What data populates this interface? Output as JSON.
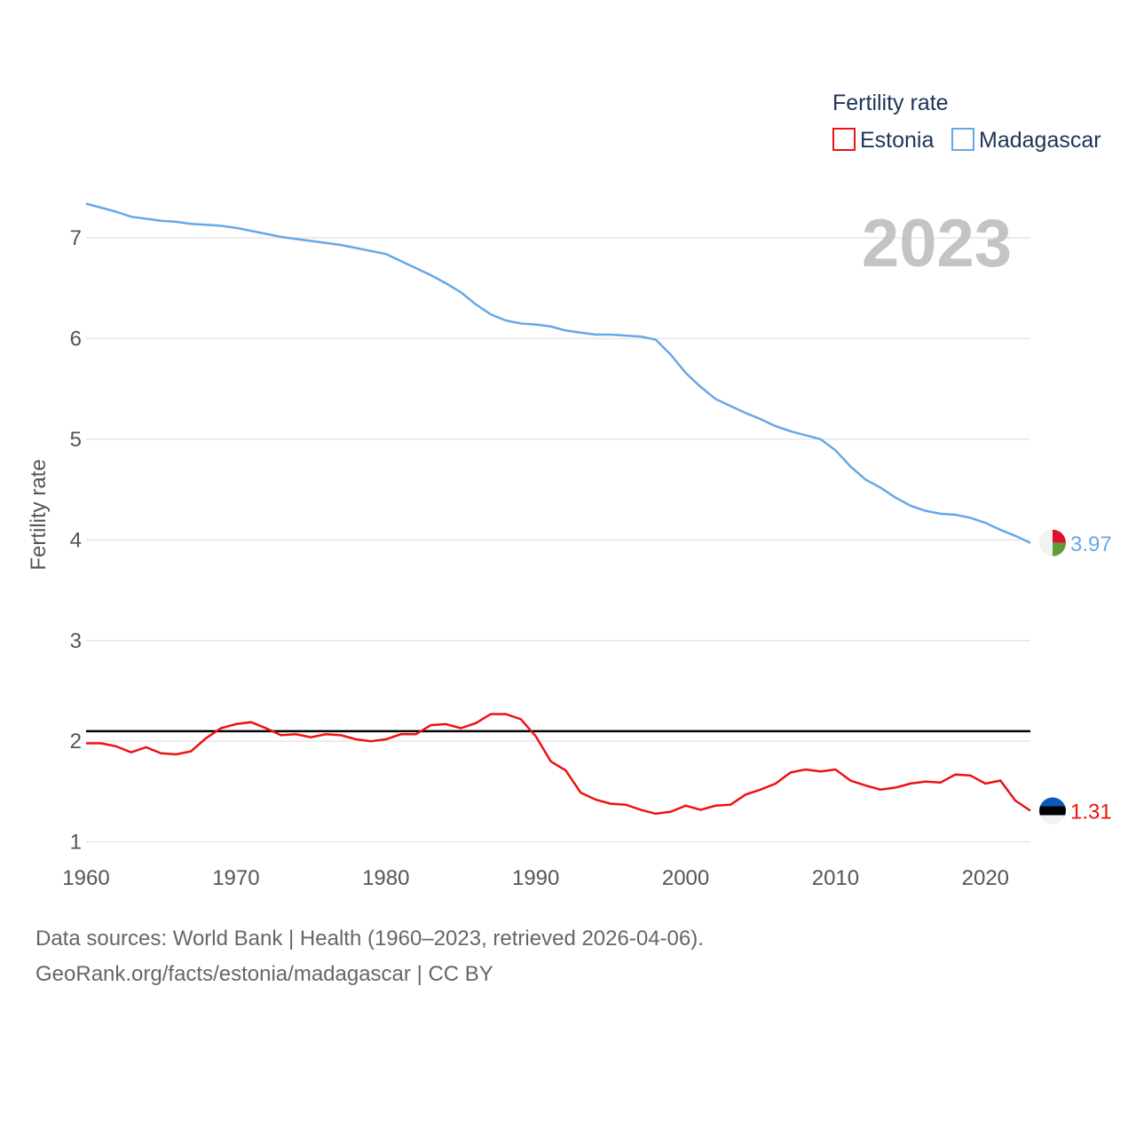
{
  "chart_data": {
    "type": "line",
    "legend_title": "Fertility rate",
    "ylabel": "Fertility rate",
    "year_label": "2023",
    "xlim": [
      1960,
      2023
    ],
    "ylim": [
      0.9,
      7.6
    ],
    "x_ticks": [
      "1960",
      "1970",
      "1980",
      "1990",
      "2000",
      "2010",
      "2020"
    ],
    "y_ticks": [
      "1",
      "2",
      "3",
      "4",
      "5",
      "6",
      "7"
    ],
    "reference_line": 2.1,
    "x": [
      1960,
      1961,
      1962,
      1963,
      1964,
      1965,
      1966,
      1967,
      1968,
      1969,
      1970,
      1971,
      1972,
      1973,
      1974,
      1975,
      1976,
      1977,
      1978,
      1979,
      1980,
      1981,
      1982,
      1983,
      1984,
      1985,
      1986,
      1987,
      1988,
      1989,
      1990,
      1991,
      1992,
      1993,
      1994,
      1995,
      1996,
      1997,
      1998,
      1999,
      2000,
      2001,
      2002,
      2003,
      2004,
      2005,
      2006,
      2007,
      2008,
      2009,
      2010,
      2011,
      2012,
      2013,
      2014,
      2015,
      2016,
      2017,
      2018,
      2019,
      2020,
      2021,
      2022,
      2023
    ],
    "series": [
      {
        "name": "Estonia",
        "color": "#ee1111",
        "end_label": "1.31",
        "values": [
          1.98,
          1.98,
          1.95,
          1.89,
          1.94,
          1.88,
          1.87,
          1.9,
          2.03,
          2.13,
          2.17,
          2.19,
          2.13,
          2.06,
          2.07,
          2.04,
          2.07,
          2.06,
          2.02,
          2.0,
          2.02,
          2.07,
          2.07,
          2.16,
          2.17,
          2.13,
          2.18,
          2.27,
          2.27,
          2.22,
          2.05,
          1.8,
          1.71,
          1.49,
          1.42,
          1.38,
          1.37,
          1.32,
          1.28,
          1.3,
          1.36,
          1.32,
          1.36,
          1.37,
          1.47,
          1.52,
          1.58,
          1.69,
          1.72,
          1.7,
          1.72,
          1.61,
          1.56,
          1.52,
          1.54,
          1.58,
          1.6,
          1.59,
          1.67,
          1.66,
          1.58,
          1.61,
          1.41,
          1.31
        ]
      },
      {
        "name": "Madagascar",
        "color": "#66a8e6",
        "end_label": "3.97",
        "values": [
          7.34,
          7.3,
          7.26,
          7.21,
          7.19,
          7.17,
          7.16,
          7.14,
          7.13,
          7.12,
          7.1,
          7.07,
          7.04,
          7.01,
          6.99,
          6.97,
          6.95,
          6.93,
          6.9,
          6.87,
          6.84,
          6.77,
          6.7,
          6.63,
          6.55,
          6.46,
          6.34,
          6.24,
          6.18,
          6.15,
          6.14,
          6.12,
          6.08,
          6.06,
          6.04,
          6.04,
          6.03,
          6.02,
          5.99,
          5.84,
          5.66,
          5.52,
          5.4,
          5.33,
          5.26,
          5.2,
          5.13,
          5.08,
          5.04,
          5.0,
          4.89,
          4.73,
          4.6,
          4.52,
          4.42,
          4.34,
          4.29,
          4.26,
          4.25,
          4.22,
          4.17,
          4.1,
          4.04,
          3.97
        ]
      }
    ]
  },
  "source": {
    "line1": "Data sources: World Bank | Health (1960–2023, retrieved 2026-04-06).",
    "line2": "GeoRank.org/facts/estonia/madagascar | CC BY"
  }
}
